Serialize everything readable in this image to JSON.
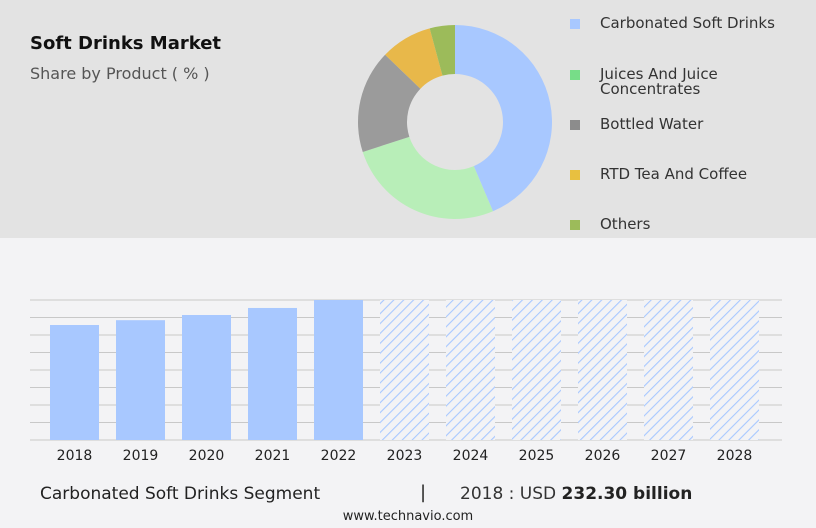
{
  "title": "Soft Drinks Market",
  "subtitle": "Share by Product ( % )",
  "chart_data": [
    {
      "type": "pie",
      "donut": true,
      "legend_placement": "right",
      "slices": [
        {
          "name": "Carbonated Soft Drinks",
          "value": 43.6,
          "color": "#a8c8ff"
        },
        {
          "name": "Juices And Juice Concentrates",
          "value": 26.4,
          "color": "#b8eeb8"
        },
        {
          "name": "Bottled Water",
          "value": 17.2,
          "color": "#9b9b9b"
        },
        {
          "name": "RTD Tea And Coffee",
          "value": 8.6,
          "color": "#e8b84a"
        },
        {
          "name": "Others",
          "value": 4.2,
          "color": "#9cbb5a"
        }
      ],
      "legend_colors": [
        "#a8c8ff",
        "#77dd88",
        "#8c8c8c",
        "#e8c040",
        "#9cbb5a"
      ]
    },
    {
      "type": "bar",
      "categories": [
        "2018",
        "2019",
        "2020",
        "2021",
        "2022",
        "2023",
        "2024",
        "2025",
        "2026",
        "2027",
        "2028"
      ],
      "values": [
        232.3,
        242,
        252.5,
        266.7,
        282.8,
        282.8,
        282.8,
        282.8,
        282.8,
        282.8,
        282.8
      ],
      "forecast_from": "2023",
      "ylim": [
        0,
        282.8
      ],
      "grid": true,
      "color": "#a8c8ff"
    }
  ],
  "footer": {
    "segment": "Carbonated Soft Drinks Segment",
    "separator": "|",
    "year_label": "2018 : USD",
    "value": "232.30 billion",
    "site": "www.technavio.com"
  }
}
